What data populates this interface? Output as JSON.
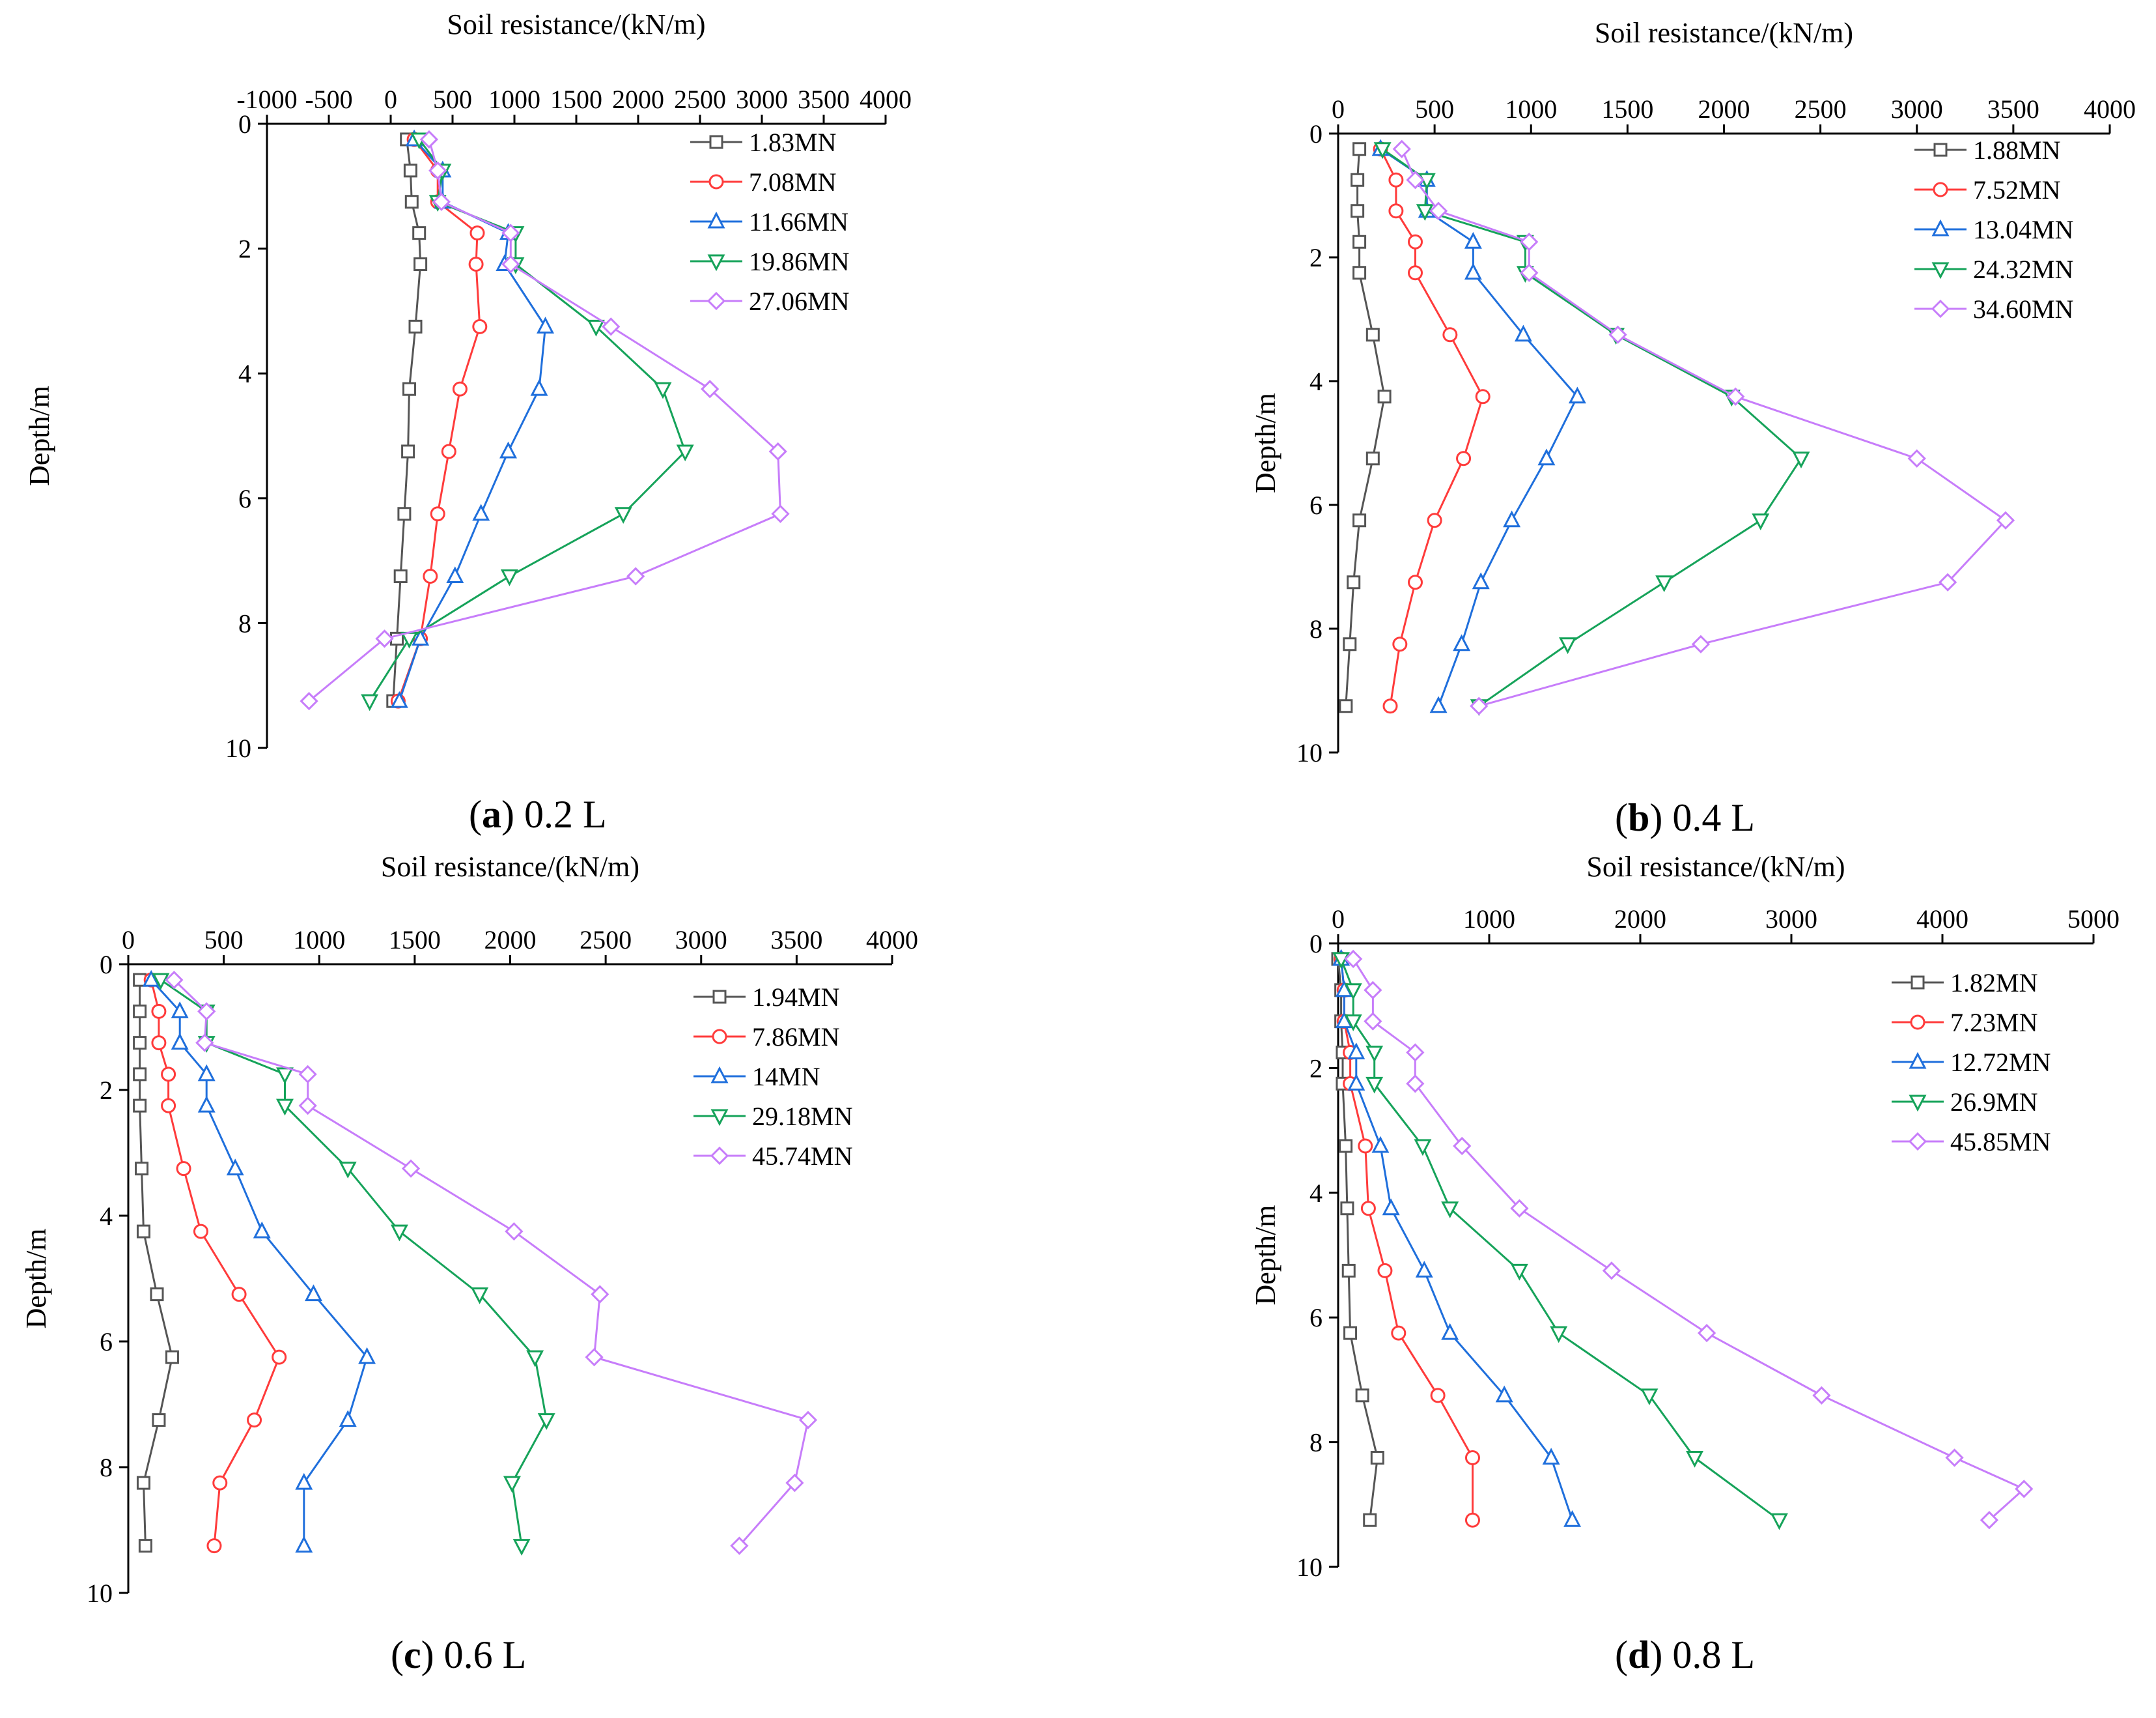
{
  "colors": {
    "series": [
      "#555555",
      "#ff3b3b",
      "#1f6fdc",
      "#16a35a",
      "#c77dfa"
    ]
  },
  "markers": [
    "square",
    "circle",
    "triangle-up",
    "triangle-down",
    "diamond"
  ],
  "chart_data": [
    {
      "type": "line",
      "panel": "a",
      "caption": {
        "letter": "a",
        "text": "0.2 L"
      },
      "xlabel": "Soil resistance/(kN/m)",
      "ylabel": "Depth/m",
      "xlim": [
        -1000,
        4000
      ],
      "ylim": [
        0,
        10
      ],
      "xticks": [
        -1000,
        -500,
        0,
        500,
        1000,
        1500,
        2000,
        2500,
        3000,
        3500,
        4000
      ],
      "xtick_labels": [
        "-1000",
        "-500",
        "0",
        "500",
        "1000",
        "1500",
        "2000",
        "2500",
        "3000",
        "3500",
        "4000"
      ],
      "yticks": [
        0,
        2,
        4,
        6,
        8,
        10
      ],
      "x_axis_position": "top",
      "y_inverted": true,
      "grid": false,
      "legend_position": "top-right",
      "depth": [
        0.25,
        0.75,
        1.25,
        1.75,
        2.25,
        3.25,
        4.25,
        5.25,
        6.25,
        7.25,
        8.25,
        9.25
      ],
      "series": [
        {
          "name": "1.83MN",
          "values": [
            130,
            160,
            170,
            230,
            240,
            200,
            150,
            140,
            110,
            80,
            50,
            20
          ]
        },
        {
          "name": "7.08MN",
          "values": [
            190,
            380,
            380,
            700,
            690,
            720,
            560,
            470,
            380,
            320,
            240,
            60
          ]
        },
        {
          "name": "11.66MN",
          "values": [
            190,
            420,
            420,
            950,
            920,
            1250,
            1200,
            950,
            730,
            520,
            240,
            70
          ]
        },
        {
          "name": "19.86MN",
          "values": [
            230,
            420,
            380,
            1010,
            1010,
            1660,
            2200,
            2380,
            1880,
            960,
            150,
            -170
          ]
        },
        {
          "name": "27.06MN",
          "values": [
            310,
            380,
            410,
            970,
            970,
            1780,
            2580,
            3130,
            3150,
            1980,
            -50,
            -660
          ]
        }
      ]
    },
    {
      "type": "line",
      "panel": "b",
      "caption": {
        "letter": "b",
        "text": "0.4 L"
      },
      "xlabel": "Soil resistance/(kN/m)",
      "ylabel": "Depth/m",
      "xlim": [
        0,
        4000
      ],
      "ylim": [
        0,
        10
      ],
      "xticks": [
        0,
        500,
        1000,
        1500,
        2000,
        2500,
        3000,
        3500,
        4000
      ],
      "xtick_labels": [
        "0",
        "500",
        "1000",
        "1500",
        "2000",
        "2500",
        "3000",
        "3500",
        "4000"
      ],
      "yticks": [
        0,
        2,
        4,
        6,
        8,
        10
      ],
      "x_axis_position": "top",
      "y_inverted": true,
      "grid": false,
      "legend_position": "top-right",
      "depth": [
        0.25,
        0.75,
        1.25,
        1.75,
        2.25,
        3.25,
        4.25,
        5.25,
        6.25,
        7.25,
        8.25,
        9.25
      ],
      "series": [
        {
          "name": "1.88MN",
          "values": [
            110,
            100,
            100,
            110,
            110,
            180,
            240,
            180,
            110,
            80,
            60,
            40
          ]
        },
        {
          "name": "7.52MN",
          "values": [
            220,
            300,
            300,
            400,
            400,
            580,
            750,
            650,
            500,
            400,
            320,
            270
          ]
        },
        {
          "name": "13.04MN",
          "values": [
            220,
            460,
            460,
            700,
            700,
            960,
            1240,
            1080,
            900,
            740,
            640,
            520
          ]
        },
        {
          "name": "24.32MN",
          "values": [
            230,
            460,
            450,
            970,
            970,
            1440,
            2040,
            2400,
            2190,
            1690,
            1190,
            730
          ]
        },
        {
          "name": "34.60MN",
          "values": [
            330,
            400,
            520,
            990,
            990,
            1450,
            2060,
            3000,
            3460,
            3160,
            1880,
            730
          ]
        }
      ]
    },
    {
      "type": "line",
      "panel": "c",
      "caption": {
        "letter": "c",
        "text": "0.6 L"
      },
      "xlabel": "Soil resistance/(kN/m)",
      "ylabel": "Depth/m",
      "xlim": [
        0,
        4000
      ],
      "ylim": [
        0,
        10
      ],
      "xticks": [
        0,
        500,
        1000,
        1500,
        2000,
        2500,
        3000,
        3500,
        4000
      ],
      "xtick_labels": [
        "0",
        "500",
        "1000",
        "1500",
        "2000",
        "2500",
        "3000",
        "3500",
        "4000"
      ],
      "yticks": [
        0,
        2,
        4,
        6,
        8,
        10
      ],
      "x_axis_position": "top",
      "y_inverted": true,
      "grid": false,
      "legend_position": "top-right",
      "depth": [
        0.25,
        0.75,
        1.25,
        1.75,
        2.25,
        3.25,
        4.25,
        5.25,
        6.25,
        7.25,
        8.25,
        9.25
      ],
      "series": [
        {
          "name": "1.94MN",
          "values": [
            60,
            60,
            60,
            60,
            60,
            70,
            80,
            150,
            230,
            160,
            80,
            90
          ]
        },
        {
          "name": "7.86MN",
          "values": [
            120,
            160,
            160,
            210,
            210,
            290,
            380,
            580,
            790,
            660,
            480,
            450
          ]
        },
        {
          "name": "14MN",
          "values": [
            120,
            270,
            270,
            410,
            410,
            560,
            700,
            970,
            1250,
            1150,
            920,
            920
          ]
        },
        {
          "name": "29.18MN",
          "values": [
            170,
            410,
            410,
            820,
            820,
            1150,
            1420,
            1840,
            2130,
            2190,
            2010,
            2060
          ]
        },
        {
          "name": "45.74MN",
          "values": [
            240,
            410,
            400,
            940,
            940,
            1480,
            2020,
            2470,
            2440,
            3560,
            3490,
            3200
          ]
        }
      ]
    },
    {
      "type": "line",
      "panel": "d",
      "caption": {
        "letter": "d",
        "text": "0.8 L"
      },
      "xlabel": "Soil resistance/(kN/m)",
      "ylabel": "Depth/m",
      "xlim": [
        0,
        5000
      ],
      "ylim": [
        0,
        10
      ],
      "xticks": [
        0,
        1000,
        2000,
        3000,
        4000,
        5000
      ],
      "xtick_labels": [
        "0",
        "1000",
        "2000",
        "3000",
        "4000",
        "5000"
      ],
      "yticks": [
        0,
        2,
        4,
        6,
        8,
        10
      ],
      "x_axis_position": "top",
      "y_inverted": true,
      "grid": false,
      "legend_position": "top-right",
      "series": [
        {
          "name": "1.82MN",
          "depth": [
            0.25,
            0.75,
            1.25,
            1.75,
            2.25,
            3.25,
            4.25,
            5.25,
            6.25,
            7.25,
            8.25,
            9.25
          ],
          "values": [
            0,
            20,
            20,
            30,
            30,
            50,
            60,
            70,
            80,
            160,
            260,
            210
          ]
        },
        {
          "name": "7.23MN",
          "depth": [
            0.25,
            0.75,
            1.25,
            1.75,
            2.25,
            3.25,
            4.25,
            5.25,
            6.25,
            7.25,
            8.25,
            9.25
          ],
          "values": [
            20,
            40,
            40,
            80,
            80,
            180,
            200,
            310,
            400,
            660,
            890,
            890
          ]
        },
        {
          "name": "12.72MN",
          "depth": [
            0.25,
            0.75,
            1.25,
            1.75,
            2.25,
            3.25,
            4.25,
            5.25,
            6.25,
            7.25,
            8.25,
            9.25
          ],
          "values": [
            20,
            40,
            40,
            120,
            120,
            280,
            350,
            570,
            740,
            1100,
            1410,
            1550
          ]
        },
        {
          "name": "26.9MN",
          "depth": [
            0.25,
            0.75,
            1.25,
            1.75,
            2.25,
            3.25,
            4.25,
            5.25,
            6.25,
            7.25,
            8.25,
            9.25
          ],
          "values": [
            20,
            100,
            100,
            240,
            240,
            560,
            740,
            1200,
            1460,
            2060,
            2360,
            2920
          ]
        },
        {
          "name": "45.85MN",
          "depth": [
            0.25,
            0.75,
            1.25,
            1.75,
            2.25,
            3.25,
            4.25,
            5.25,
            6.25,
            7.25,
            8.25,
            8.75,
            9.25
          ],
          "values": [
            100,
            230,
            230,
            510,
            510,
            820,
            1200,
            1810,
            2440,
            3200,
            4080,
            4540,
            4310
          ]
        }
      ]
    }
  ]
}
